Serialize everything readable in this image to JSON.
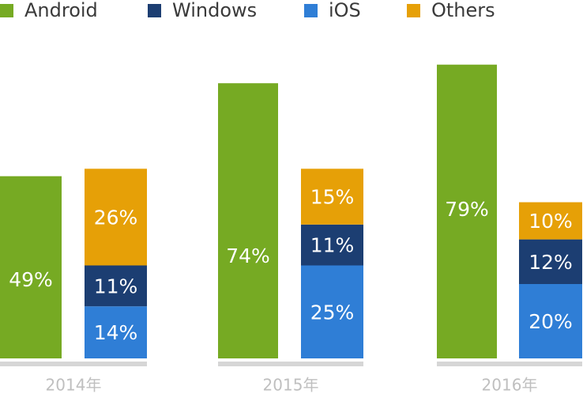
{
  "colors": {
    "Android": "#76AA23",
    "Windows": "#1C3E72",
    "iOS": "#2F7ED6",
    "Others": "#E6A007",
    "baseline": "#D6D6D6",
    "year_label": "#BFBFBF"
  },
  "legend": [
    {
      "label": "Android",
      "color": "#76AA23"
    },
    {
      "label": "Windows",
      "color": "#1C3E72"
    },
    {
      "label": "iOS",
      "color": "#2F7ED6"
    },
    {
      "label": "Others",
      "color": "#E6A007"
    }
  ],
  "chart_data": {
    "type": "bar",
    "categories": [
      "2014年",
      "2015年",
      "2016年"
    ],
    "android": [
      49,
      74,
      79
    ],
    "stack_order": [
      "iOS",
      "Windows",
      "Others"
    ],
    "stacks": {
      "iOS": [
        14,
        25,
        20
      ],
      "Windows": [
        11,
        11,
        12
      ],
      "Others": [
        26,
        15,
        10
      ]
    },
    "data_labels": {
      "android": [
        "49%",
        "74%",
        "79%"
      ],
      "iOS": [
        "14%",
        "25%",
        "20%"
      ],
      "Windows": [
        "11%",
        "11%",
        "12%"
      ],
      "Others": [
        "26%",
        "15%",
        "10%"
      ]
    },
    "title": "",
    "xlabel": "",
    "ylabel": "",
    "grid": false,
    "legend_position": "top-left"
  }
}
